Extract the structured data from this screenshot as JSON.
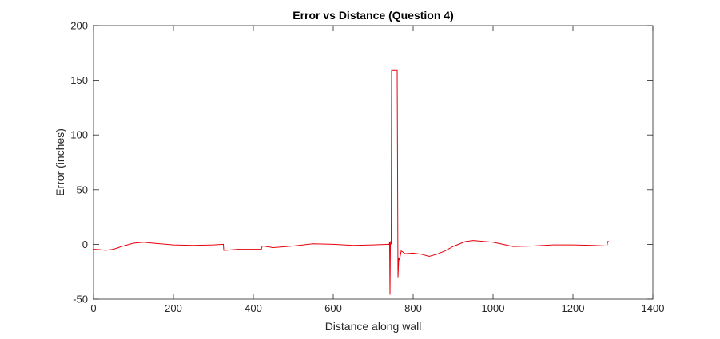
{
  "chart_data": {
    "type": "line",
    "title": "Error vs Distance (Question 4)",
    "xlabel": "Distance along wall",
    "ylabel": "Error (inches)",
    "xlim": [
      0,
      1400
    ],
    "ylim": [
      -50,
      200
    ],
    "xticks": [
      0,
      200,
      400,
      600,
      800,
      1000,
      1200,
      1400
    ],
    "yticks": [
      -50,
      0,
      50,
      100,
      150,
      200
    ],
    "grid": false,
    "box": true,
    "series": [
      {
        "color": "#e8000b",
        "x": [
          0,
          15,
          30,
          50,
          70,
          100,
          125,
          150,
          200,
          250,
          300,
          325,
          326,
          332,
          360,
          400,
          420,
          422,
          424,
          450,
          500,
          550,
          600,
          650,
          700,
          740,
          741,
          742,
          743,
          744,
          745,
          746,
          748,
          749,
          760,
          762,
          764,
          766,
          770,
          780,
          800,
          820,
          840,
          860,
          880,
          900,
          930,
          950,
          1000,
          1050,
          1100,
          1150,
          1200,
          1250,
          1285,
          1287,
          1289
        ],
        "y": [
          -4.5,
          -4.8,
          -5.5,
          -4.5,
          -2,
          1,
          2,
          1,
          -0.5,
          -1,
          -0.5,
          0,
          -5.5,
          -5.5,
          -4.5,
          -4.5,
          -4.5,
          -2,
          -1.5,
          -3,
          -1.5,
          0.5,
          0,
          -1,
          -0.5,
          0,
          2,
          -46,
          0.5,
          3,
          0,
          159,
          159,
          159,
          159,
          -30,
          -12,
          -14,
          -6,
          -8.5,
          -8,
          -9,
          -11,
          -9,
          -6,
          -2,
          2.5,
          3.5,
          2,
          -2,
          -1.5,
          -0.5,
          -0.5,
          -1,
          -1.5,
          2.5,
          3
        ]
      }
    ]
  }
}
